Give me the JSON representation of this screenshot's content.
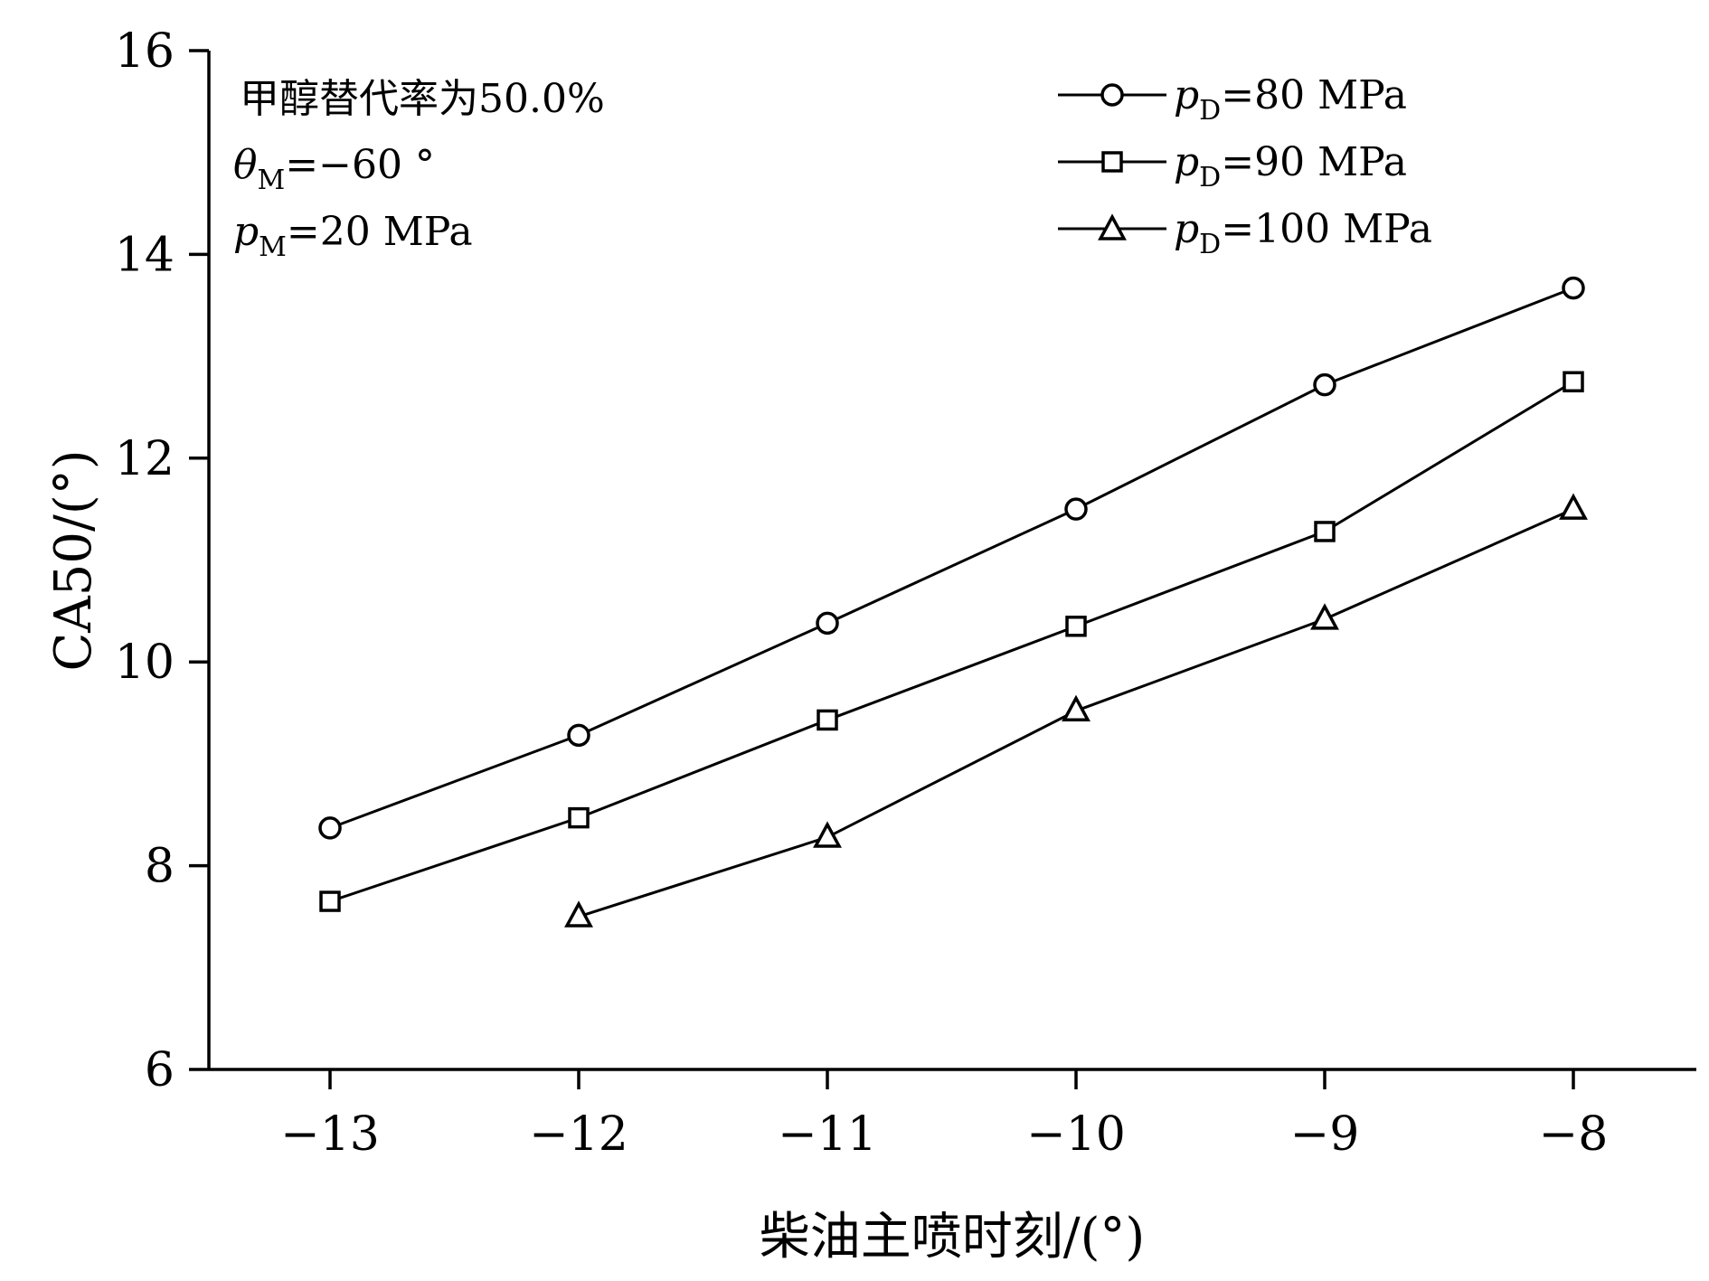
{
  "chart_data": {
    "type": "line",
    "xlabel": "柴油主喷时刻/(°)",
    "ylabel": "CA50/(°)",
    "xlim": [
      -13.5,
      -7.5
    ],
    "ylim": [
      6,
      16
    ],
    "x_ticks": [
      -13,
      -12,
      -11,
      -10,
      -9,
      -8
    ],
    "x_tick_labels": [
      "−13",
      "−12",
      "−11",
      "−10",
      "−9",
      "−8"
    ],
    "y_ticks": [
      6,
      8,
      10,
      12,
      14,
      16
    ],
    "y_tick_labels": [
      "6",
      "8",
      "10",
      "12",
      "14",
      "16"
    ],
    "grid": false,
    "legend_position": "top-right",
    "annotations": {
      "line1": "甲醇替代率为50.0%",
      "line2": {
        "var": "θ",
        "sub": "M",
        "rest": "=−60 °"
      },
      "line3": {
        "var": "p",
        "sub": "M",
        "rest": "=20 MPa"
      }
    },
    "series": [
      {
        "name_var": "p",
        "name_sub": "D",
        "name_rest": "=80 MPa",
        "marker": "circle",
        "x": [
          -13,
          -12,
          -11,
          -10,
          -9,
          -8
        ],
        "y": [
          8.37,
          9.28,
          10.38,
          11.5,
          12.72,
          13.67
        ]
      },
      {
        "name_var": "p",
        "name_sub": "D",
        "name_rest": "=90 MPa",
        "marker": "square",
        "x": [
          -13,
          -12,
          -11,
          -10,
          -9,
          -8
        ],
        "y": [
          7.65,
          8.47,
          9.43,
          10.35,
          11.28,
          12.75
        ]
      },
      {
        "name_var": "p",
        "name_sub": "D",
        "name_rest": "=100 MPa",
        "marker": "triangle",
        "x": [
          -12,
          -11,
          -10,
          -9,
          -8
        ],
        "y": [
          7.5,
          8.28,
          9.52,
          10.42,
          11.5
        ]
      }
    ]
  }
}
